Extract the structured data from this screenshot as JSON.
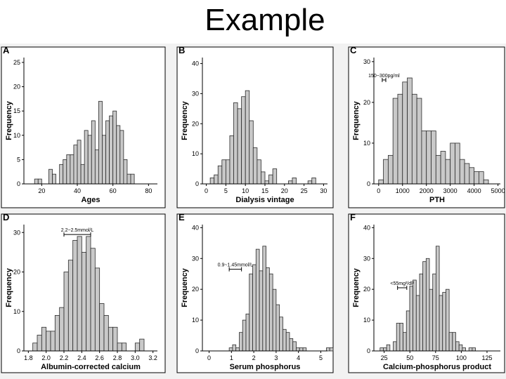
{
  "slide": {
    "title": "Example"
  },
  "chart_data": [
    {
      "panel": "A",
      "type": "bar",
      "xlabel": "Ages",
      "ylabel": "Frequency",
      "xlim": [
        10,
        85
      ],
      "ylim": [
        0,
        26
      ],
      "xticks": [
        "20",
        "40",
        "60",
        "80"
      ],
      "xtick_values": [
        20,
        40,
        60,
        80
      ],
      "yticks": [
        "0",
        "5",
        "10",
        "15",
        "20",
        "25"
      ],
      "ytick_values": [
        0,
        5,
        10,
        15,
        20,
        25
      ],
      "bin_start": 16,
      "bin_width": 2,
      "values": [
        1,
        1,
        0,
        0,
        3,
        2,
        0,
        4,
        5,
        6,
        6,
        8,
        9,
        4,
        11,
        10,
        13,
        7,
        17,
        10,
        13,
        14,
        15,
        12,
        11,
        5,
        2,
        2
      ],
      "annotation": ""
    },
    {
      "panel": "B",
      "type": "bar",
      "xlabel": "Dialysis vintage",
      "ylabel": "Frequency",
      "xlim": [
        -1,
        31
      ],
      "ylim": [
        0,
        42
      ],
      "xticks": [
        "0",
        "5",
        "10",
        "15",
        "20",
        "25",
        "30"
      ],
      "xtick_values": [
        0,
        5,
        10,
        15,
        20,
        25,
        30
      ],
      "yticks": [
        "0",
        "10",
        "20",
        "30",
        "40"
      ],
      "ytick_values": [
        0,
        10,
        20,
        30,
        40
      ],
      "bin_start": 0,
      "bin_width": 1,
      "values": [
        0,
        2,
        3,
        6,
        8,
        8,
        16,
        27,
        25,
        29,
        31,
        21,
        12,
        8,
        4,
        1,
        3,
        5,
        0,
        0,
        0,
        1,
        2,
        0,
        0,
        0,
        1,
        2,
        0,
        0
      ],
      "annotation": ""
    },
    {
      "panel": "C",
      "type": "bar",
      "xlabel": "PTH",
      "ylabel": "Frequency",
      "xlim": [
        -200,
        5100
      ],
      "ylim": [
        0,
        31
      ],
      "xticks": [
        "0",
        "1000",
        "2000",
        "3000",
        "4000",
        "5000"
      ],
      "xtick_values": [
        0,
        1000,
        2000,
        3000,
        4000,
        5000
      ],
      "yticks": [
        "0",
        "10",
        "20",
        "30"
      ],
      "ytick_values": [
        0,
        10,
        20,
        30
      ],
      "bin_start": 0,
      "bin_width": 200,
      "values": [
        1,
        6,
        7,
        21,
        22,
        25,
        26,
        22,
        21,
        13,
        13,
        13,
        7,
        8,
        6,
        10,
        10,
        6,
        5,
        4,
        3,
        3,
        1,
        0,
        0
      ],
      "annotation": "150~300pg/ml",
      "annot_range": [
        150,
        300
      ],
      "annot_y": 25.5
    },
    {
      "panel": "D",
      "type": "bar",
      "xlabel": "Albumin-corrected calcium",
      "ylabel": "Frequency",
      "xlim": [
        1.75,
        3.25
      ],
      "ylim": [
        0,
        32
      ],
      "xticks": [
        "1.8",
        "2.0",
        "2.2",
        "2.4",
        "2.6",
        "2.8",
        "3.0",
        "3.2"
      ],
      "xtick_values": [
        1.8,
        2.0,
        2.2,
        2.4,
        2.6,
        2.8,
        3.0,
        3.2
      ],
      "yticks": [
        "0",
        "10",
        "20",
        "30"
      ],
      "ytick_values": [
        0,
        10,
        20,
        30
      ],
      "bin_start": 1.85,
      "bin_width": 0.05,
      "values": [
        2,
        4,
        6,
        5,
        5,
        9,
        11,
        20,
        23,
        28,
        29,
        25,
        29,
        26,
        21,
        12,
        9,
        6,
        6,
        2,
        2,
        0,
        0,
        2,
        3
      ],
      "annotation": "2.2~2.5mmol/L",
      "annot_range": [
        2.2,
        2.5
      ],
      "annot_y": 29.5
    },
    {
      "panel": "E",
      "type": "bar",
      "xlabel": "Serum phosphorus",
      "ylabel": "Frequency",
      "xlim": [
        -0.3,
        5.3
      ],
      "ylim": [
        0,
        41
      ],
      "xticks": [
        "0",
        "1",
        "2",
        "3",
        "4",
        "5"
      ],
      "xtick_values": [
        0,
        1,
        2,
        3,
        4,
        5
      ],
      "yticks": [
        "0",
        "10",
        "20",
        "30",
        "40"
      ],
      "ytick_values": [
        0,
        10,
        20,
        30,
        40
      ],
      "bin_start": 0.9,
      "bin_width": 0.15,
      "values": [
        1,
        2,
        1,
        6,
        10,
        12,
        25,
        28,
        33,
        26,
        34,
        27,
        25,
        20,
        15,
        11,
        7,
        6,
        4,
        3,
        1,
        1,
        1,
        0,
        0,
        0,
        0,
        0,
        0,
        1,
        1
      ],
      "annotation": "0.9~1.45mmol/L",
      "annot_range": [
        0.9,
        1.45
      ],
      "annot_y": 26.5
    },
    {
      "panel": "F",
      "type": "bar",
      "xlabel": "Calcium-phosphorus product",
      "ylabel": "Frequency",
      "xlim": [
        15,
        138
      ],
      "ylim": [
        0,
        41
      ],
      "xticks": [
        "25",
        "50",
        "75",
        "100",
        "125"
      ],
      "xtick_values": [
        25,
        50,
        75,
        100,
        125
      ],
      "yticks": [
        "0",
        "10",
        "20",
        "30",
        "40"
      ],
      "ytick_values": [
        0,
        10,
        20,
        30,
        40
      ],
      "bin_start": 21,
      "bin_width": 3.2,
      "values": [
        1,
        1,
        2,
        0,
        3,
        9,
        9,
        6,
        13,
        21,
        23,
        18,
        25,
        29,
        30,
        20,
        25,
        34,
        18,
        19,
        20,
        6,
        6,
        3,
        2,
        1,
        0,
        1,
        1
      ],
      "annotation": "<55mg²/dl²",
      "annot_range": [
        38,
        47
      ],
      "annot_y": 20.5
    }
  ]
}
